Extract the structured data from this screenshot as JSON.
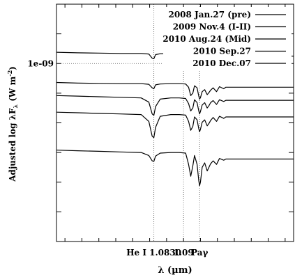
{
  "chart_data": {
    "type": "line",
    "xlabel": "λ (µm)",
    "ylabel": "Adjusted log λF",
    "ylabel_sub": "λ",
    "ylabel_unit_prefix": " (W m",
    "ylabel_unit_exp": "-2",
    "ylabel_unit_suffix": ")",
    "y_scale": "log",
    "xlim": [
      1.06,
      1.116
    ],
    "ylim": [
      1.0,
      9.0
    ],
    "grid": {
      "x": [
        1.083,
        1.09,
        1.0938
      ],
      "y": [
        7.0
      ]
    },
    "xticks": [
      {
        "value": 1.083,
        "label": "He I 1.0830"
      },
      {
        "value": 1.09,
        "label": "1.09"
      },
      {
        "value": 1.0938,
        "label": "Paγ"
      }
    ],
    "yticks": [
      {
        "value": 7.0,
        "label": "1e-09"
      }
    ],
    "legend_position": "top-right",
    "series": [
      {
        "name": "2008 Jan.27 (pre)",
        "color": "#000000",
        "x": [
          1.06,
          1.065,
          1.07,
          1.075,
          1.08,
          1.0818,
          1.0826,
          1.083,
          1.0834,
          1.0845,
          1.087,
          1.089,
          1.0905,
          1.0912,
          1.0917,
          1.0922,
          1.0926,
          1.0932,
          1.0936,
          1.0938,
          1.094,
          1.0944,
          1.095,
          1.0956,
          1.096,
          1.0964,
          1.097,
          1.0978,
          1.0985,
          1.0995,
          1.1,
          1.116
        ],
        "y": [
          7.38,
          7.36,
          7.35,
          7.34,
          7.34,
          7.32,
          7.18,
          7.16,
          7.3,
          7.33,
          7.34,
          7.34,
          7.33,
          7.25,
          7.05,
          7.1,
          7.28,
          7.2,
          6.92,
          6.85,
          6.9,
          7.1,
          7.18,
          7.05,
          7.12,
          7.22,
          7.25,
          7.15,
          7.28,
          7.22,
          7.25,
          7.25
        ]
      },
      {
        "name": "2009 Nov.4 (I-II)",
        "color": "#000000",
        "x": [
          1.06,
          1.065,
          1.07,
          1.075,
          1.08,
          1.0818,
          1.0826,
          1.083,
          1.0834,
          1.0845,
          1.087,
          1.089,
          1.0905,
          1.0912,
          1.0917,
          1.0922,
          1.0926,
          1.0932,
          1.0936,
          1.0938,
          1.094,
          1.0944,
          1.095,
          1.0956,
          1.096,
          1.0964,
          1.097,
          1.0978,
          1.0985,
          1.0995,
          1.1,
          1.116
        ],
        "y": [
          6.36,
          6.34,
          6.33,
          6.32,
          6.32,
          6.3,
          6.18,
          6.15,
          6.28,
          6.31,
          6.32,
          6.32,
          6.31,
          6.2,
          5.92,
          6.0,
          6.25,
          6.18,
          5.9,
          5.8,
          5.85,
          6.05,
          6.12,
          5.95,
          6.02,
          6.1,
          6.18,
          6.05,
          6.22,
          6.15,
          6.2,
          6.2
        ]
      },
      {
        "name": "2010 Aug.24 (Mid)",
        "color": "#000000",
        "x": [
          1.06,
          1.065,
          1.07,
          1.075,
          1.08,
          1.0818,
          1.0826,
          1.083,
          1.0834,
          1.0845,
          1.087,
          1.089,
          1.0905,
          1.0912,
          1.0917,
          1.0922,
          1.0926,
          1.0932,
          1.0936,
          1.0938,
          1.094,
          1.0944,
          1.095,
          1.0956,
          1.096,
          1.0964,
          1.097,
          1.0978,
          1.0985,
          1.0995,
          1.1,
          1.116
        ],
        "y": [
          5.92,
          5.9,
          5.88,
          5.86,
          5.84,
          5.7,
          5.3,
          5.25,
          5.55,
          5.8,
          5.84,
          5.84,
          5.82,
          5.65,
          5.4,
          5.5,
          5.78,
          5.68,
          5.4,
          5.3,
          5.38,
          5.6,
          5.68,
          5.5,
          5.58,
          5.68,
          5.75,
          5.62,
          5.78,
          5.72,
          5.76,
          5.76
        ]
      },
      {
        "name": "2010 Sep.27",
        "color": "#000000",
        "x": [
          1.06,
          1.065,
          1.07,
          1.075,
          1.08,
          1.0818,
          1.0826,
          1.083,
          1.0834,
          1.0845,
          1.087,
          1.089,
          1.0905,
          1.0912,
          1.0917,
          1.0922,
          1.0926,
          1.0932,
          1.0936,
          1.0938,
          1.094,
          1.0944,
          1.095,
          1.0956,
          1.096,
          1.0964,
          1.097,
          1.0978,
          1.0985,
          1.0995,
          1.1,
          1.116
        ],
        "y": [
          5.36,
          5.34,
          5.32,
          5.3,
          5.28,
          5.05,
          4.55,
          4.5,
          4.85,
          5.22,
          5.28,
          5.28,
          5.26,
          5.05,
          4.75,
          4.88,
          5.2,
          5.1,
          4.8,
          4.7,
          4.78,
          5.02,
          5.1,
          4.9,
          4.98,
          5.08,
          5.18,
          5.05,
          5.22,
          5.15,
          5.2,
          5.2
        ]
      },
      {
        "name": "2010 Dec.07",
        "color": "#000000",
        "x": [
          1.06,
          1.065,
          1.07,
          1.075,
          1.08,
          1.0818,
          1.0826,
          1.083,
          1.0834,
          1.0845,
          1.087,
          1.089,
          1.0905,
          1.0912,
          1.0917,
          1.0922,
          1.0926,
          1.0932,
          1.0936,
          1.0938,
          1.094,
          1.0944,
          1.095,
          1.0956,
          1.096,
          1.0964,
          1.097,
          1.0978,
          1.0985,
          1.0995,
          1.1,
          1.116
        ],
        "y": [
          4.08,
          4.06,
          4.04,
          4.02,
          4.0,
          3.9,
          3.72,
          3.7,
          3.88,
          3.98,
          4.0,
          4.0,
          3.98,
          3.6,
          3.2,
          3.55,
          3.9,
          3.6,
          3.05,
          2.88,
          3.0,
          3.5,
          3.65,
          3.38,
          3.5,
          3.62,
          3.72,
          3.6,
          3.8,
          3.74,
          3.78,
          3.78
        ]
      }
    ]
  }
}
